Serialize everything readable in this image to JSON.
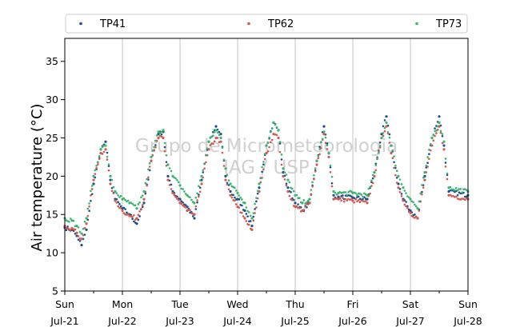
{
  "chart_data": {
    "type": "scatter",
    "title": "",
    "xlabel": "",
    "ylabel": "Air temperature (°C)",
    "ylim": [
      5,
      38
    ],
    "yticks": [
      5,
      10,
      15,
      20,
      25,
      30,
      35
    ],
    "xlim": [
      "2019-07-21 00:00",
      "2019-07-28 00:00"
    ],
    "xticks": [
      {
        "day": "Sun",
        "date": "Jul-21"
      },
      {
        "day": "Mon",
        "date": "Jul-22"
      },
      {
        "day": "Tue",
        "date": "Jul-23"
      },
      {
        "day": "Wed",
        "date": "Jul-24"
      },
      {
        "day": "Thu",
        "date": "Jul-25"
      },
      {
        "day": "Fri",
        "date": "Jul-26"
      },
      {
        "day": "Sat",
        "date": "Jul-27"
      },
      {
        "day": "Sun",
        "date": "Jul-28"
      }
    ],
    "grid": "vertical at day ticks",
    "legend_position": "top, above plot",
    "watermark": [
      "Grupo de Micrometeorologia",
      "IAG / USP"
    ],
    "series": [
      {
        "name": "TP41",
        "color": "#1f4e8c",
        "points": [
          [
            "2019-07-21 00:00",
            13.3
          ],
          [
            "2019-07-21 03:00",
            13.0
          ],
          [
            "2019-07-21 05:00",
            12.2
          ],
          [
            "2019-07-21 07:00",
            11.0
          ],
          [
            "2019-07-21 09:00",
            13.0
          ],
          [
            "2019-07-21 12:00",
            19.0
          ],
          [
            "2019-07-21 15:00",
            23.5
          ],
          [
            "2019-07-21 17:00",
            24.5
          ],
          [
            "2019-07-21 19:00",
            19.5
          ],
          [
            "2019-07-21 21:00",
            17.0
          ],
          [
            "2019-07-22 00:00",
            15.8
          ],
          [
            "2019-07-22 03:00",
            15.0
          ],
          [
            "2019-07-22 06:00",
            13.8
          ],
          [
            "2019-07-22 09:00",
            16.5
          ],
          [
            "2019-07-22 12:00",
            22.0
          ],
          [
            "2019-07-22 15:00",
            25.5
          ],
          [
            "2019-07-22 17:00",
            25.8
          ],
          [
            "2019-07-22 19:00",
            20.0
          ],
          [
            "2019-07-22 21:00",
            18.0
          ],
          [
            "2019-07-23 00:00",
            17.0
          ],
          [
            "2019-07-23 03:00",
            16.0
          ],
          [
            "2019-07-23 06:00",
            14.5
          ],
          [
            "2019-07-23 09:00",
            19.5
          ],
          [
            "2019-07-23 12:00",
            24.5
          ],
          [
            "2019-07-23 15:00",
            26.5
          ],
          [
            "2019-07-23 17:00",
            25.5
          ],
          [
            "2019-07-23 19:00",
            20.0
          ],
          [
            "2019-07-23 21:00",
            18.0
          ],
          [
            "2019-07-24 00:00",
            17.0
          ],
          [
            "2019-07-24 03:00",
            15.5
          ],
          [
            "2019-07-24 06:00",
            13.5
          ],
          [
            "2019-07-24 09:00",
            18.5
          ],
          [
            "2019-07-24 12:00",
            24.0
          ],
          [
            "2019-07-24 15:00",
            27.0
          ],
          [
            "2019-07-24 17:00",
            26.0
          ],
          [
            "2019-07-24 19:00",
            20.5
          ],
          [
            "2019-07-24 21:00",
            18.5
          ],
          [
            "2019-07-25 00:00",
            16.5
          ],
          [
            "2019-07-25 03:00",
            15.5
          ],
          [
            "2019-07-25 06:00",
            16.5
          ],
          [
            "2019-07-25 09:00",
            22.0
          ],
          [
            "2019-07-25 12:00",
            26.5
          ],
          [
            "2019-07-25 14:00",
            23.0
          ],
          [
            "2019-07-25 16:00",
            17.5
          ],
          [
            "2019-07-25 18:00",
            17.3
          ],
          [
            "2019-07-26 00:00",
            17.2
          ],
          [
            "2019-07-26 06:00",
            17.0
          ],
          [
            "2019-07-26 09:00",
            20.5
          ],
          [
            "2019-07-26 12:00",
            25.5
          ],
          [
            "2019-07-26 14:00",
            27.8
          ],
          [
            "2019-07-26 16:00",
            24.0
          ],
          [
            "2019-07-26 19:00",
            19.0
          ],
          [
            "2019-07-26 21:00",
            17.0
          ],
          [
            "2019-07-27 00:00",
            15.5
          ],
          [
            "2019-07-27 03:00",
            14.5
          ],
          [
            "2019-07-27 06:00",
            20.0
          ],
          [
            "2019-07-27 09:00",
            25.0
          ],
          [
            "2019-07-27 12:00",
            27.8
          ],
          [
            "2019-07-27 14:00",
            24.0
          ],
          [
            "2019-07-27 16:00",
            18.0
          ],
          [
            "2019-07-28 00:00",
            17.5
          ]
        ]
      },
      {
        "name": "TP62",
        "color": "#d05a50",
        "points": [
          [
            "2019-07-21 00:00",
            13.5
          ],
          [
            "2019-07-21 03:00",
            13.2
          ],
          [
            "2019-07-21 05:00",
            12.6
          ],
          [
            "2019-07-21 07:00",
            11.8
          ],
          [
            "2019-07-21 09:00",
            13.8
          ],
          [
            "2019-07-21 12:00",
            19.5
          ],
          [
            "2019-07-21 15:00",
            23.0
          ],
          [
            "2019-07-21 17:00",
            23.5
          ],
          [
            "2019-07-21 19:00",
            19.0
          ],
          [
            "2019-07-21 21:00",
            16.8
          ],
          [
            "2019-07-22 00:00",
            15.5
          ],
          [
            "2019-07-22 03:00",
            14.8
          ],
          [
            "2019-07-22 06:00",
            14.5
          ],
          [
            "2019-07-22 09:00",
            17.0
          ],
          [
            "2019-07-22 12:00",
            22.0
          ],
          [
            "2019-07-22 15:00",
            25.0
          ],
          [
            "2019-07-22 17:00",
            25.0
          ],
          [
            "2019-07-22 19:00",
            19.5
          ],
          [
            "2019-07-22 21:00",
            17.8
          ],
          [
            "2019-07-23 00:00",
            16.5
          ],
          [
            "2019-07-23 03:00",
            15.5
          ],
          [
            "2019-07-23 06:00",
            15.0
          ],
          [
            "2019-07-23 09:00",
            19.0
          ],
          [
            "2019-07-23 12:00",
            23.5
          ],
          [
            "2019-07-23 15:00",
            25.0
          ],
          [
            "2019-07-23 17:00",
            24.5
          ],
          [
            "2019-07-23 19:00",
            19.5
          ],
          [
            "2019-07-23 21:00",
            17.5
          ],
          [
            "2019-07-24 00:00",
            16.0
          ],
          [
            "2019-07-24 03:00",
            14.5
          ],
          [
            "2019-07-24 06:00",
            13.0
          ],
          [
            "2019-07-24 09:00",
            18.0
          ],
          [
            "2019-07-24 12:00",
            23.0
          ],
          [
            "2019-07-24 15:00",
            25.5
          ],
          [
            "2019-07-24 17:00",
            25.0
          ],
          [
            "2019-07-24 19:00",
            20.0
          ],
          [
            "2019-07-24 21:00",
            18.0
          ],
          [
            "2019-07-25 00:00",
            16.0
          ],
          [
            "2019-07-25 03:00",
            15.5
          ],
          [
            "2019-07-25 06:00",
            16.5
          ],
          [
            "2019-07-25 09:00",
            21.5
          ],
          [
            "2019-07-25 12:00",
            25.5
          ],
          [
            "2019-07-25 14:00",
            22.5
          ],
          [
            "2019-07-25 16:00",
            17.0
          ],
          [
            "2019-07-25 18:00",
            17.0
          ],
          [
            "2019-07-26 00:00",
            16.8
          ],
          [
            "2019-07-26 06:00",
            16.5
          ],
          [
            "2019-07-26 09:00",
            20.0
          ],
          [
            "2019-07-26 12:00",
            25.0
          ],
          [
            "2019-07-26 14:00",
            26.5
          ],
          [
            "2019-07-26 16:00",
            23.0
          ],
          [
            "2019-07-26 19:00",
            18.5
          ],
          [
            "2019-07-26 21:00",
            16.8
          ],
          [
            "2019-07-27 00:00",
            15.2
          ],
          [
            "2019-07-27 03:00",
            14.5
          ],
          [
            "2019-07-27 06:00",
            19.5
          ],
          [
            "2019-07-27 09:00",
            24.0
          ],
          [
            "2019-07-27 12:00",
            26.5
          ],
          [
            "2019-07-27 14:00",
            23.5
          ],
          [
            "2019-07-27 16:00",
            17.5
          ],
          [
            "2019-07-28 00:00",
            17.0
          ]
        ]
      },
      {
        "name": "TP73",
        "color": "#3cb371",
        "points": [
          [
            "2019-07-21 00:00",
            14.5
          ],
          [
            "2019-07-21 03:00",
            14.2
          ],
          [
            "2019-07-21 05:00",
            13.5
          ],
          [
            "2019-07-21 07:00",
            12.5
          ],
          [
            "2019-07-21 09:00",
            14.5
          ],
          [
            "2019-07-21 12:00",
            20.0
          ],
          [
            "2019-07-21 15:00",
            23.5
          ],
          [
            "2019-07-21 17:00",
            24.0
          ],
          [
            "2019-07-21 19:00",
            20.0
          ],
          [
            "2019-07-21 21:00",
            18.0
          ],
          [
            "2019-07-22 00:00",
            17.0
          ],
          [
            "2019-07-22 03:00",
            16.5
          ],
          [
            "2019-07-22 06:00",
            15.8
          ],
          [
            "2019-07-22 09:00",
            18.0
          ],
          [
            "2019-07-22 12:00",
            22.5
          ],
          [
            "2019-07-22 15:00",
            25.8
          ],
          [
            "2019-07-22 17:00",
            26.0
          ],
          [
            "2019-07-22 19:00",
            21.5
          ],
          [
            "2019-07-22 21:00",
            20.0
          ],
          [
            "2019-07-23 00:00",
            18.8
          ],
          [
            "2019-07-23 03:00",
            17.5
          ],
          [
            "2019-07-23 06:00",
            16.5
          ],
          [
            "2019-07-23 09:00",
            20.0
          ],
          [
            "2019-07-23 12:00",
            24.5
          ],
          [
            "2019-07-23 15:00",
            26.0
          ],
          [
            "2019-07-23 17:00",
            25.0
          ],
          [
            "2019-07-23 19:00",
            21.0
          ],
          [
            "2019-07-23 21:00",
            19.0
          ],
          [
            "2019-07-24 00:00",
            17.8
          ],
          [
            "2019-07-24 03:00",
            16.5
          ],
          [
            "2019-07-24 06:00",
            14.5
          ],
          [
            "2019-07-24 09:00",
            19.0
          ],
          [
            "2019-07-24 12:00",
            24.0
          ],
          [
            "2019-07-24 15:00",
            27.0
          ],
          [
            "2019-07-24 17:00",
            26.0
          ],
          [
            "2019-07-24 19:00",
            21.0
          ],
          [
            "2019-07-24 21:00",
            19.5
          ],
          [
            "2019-07-25 00:00",
            17.5
          ],
          [
            "2019-07-25 03:00",
            16.5
          ],
          [
            "2019-07-25 06:00",
            17.0
          ],
          [
            "2019-07-25 09:00",
            22.0
          ],
          [
            "2019-07-25 12:00",
            25.8
          ],
          [
            "2019-07-25 14:00",
            23.0
          ],
          [
            "2019-07-25 16:00",
            18.0
          ],
          [
            "2019-07-25 18:00",
            17.8
          ],
          [
            "2019-07-26 00:00",
            17.8
          ],
          [
            "2019-07-26 06:00",
            17.5
          ],
          [
            "2019-07-26 09:00",
            20.5
          ],
          [
            "2019-07-26 12:00",
            25.0
          ],
          [
            "2019-07-26 14:00",
            27.0
          ],
          [
            "2019-07-26 16:00",
            24.0
          ],
          [
            "2019-07-26 19:00",
            20.0
          ],
          [
            "2019-07-26 21:00",
            18.5
          ],
          [
            "2019-07-27 00:00",
            17.0
          ],
          [
            "2019-07-27 03:00",
            15.8
          ],
          [
            "2019-07-27 06:00",
            20.5
          ],
          [
            "2019-07-27 09:00",
            25.0
          ],
          [
            "2019-07-27 12:00",
            27.0
          ],
          [
            "2019-07-27 14:00",
            24.5
          ],
          [
            "2019-07-27 16:00",
            18.5
          ],
          [
            "2019-07-28 00:00",
            18.0
          ]
        ]
      }
    ]
  }
}
